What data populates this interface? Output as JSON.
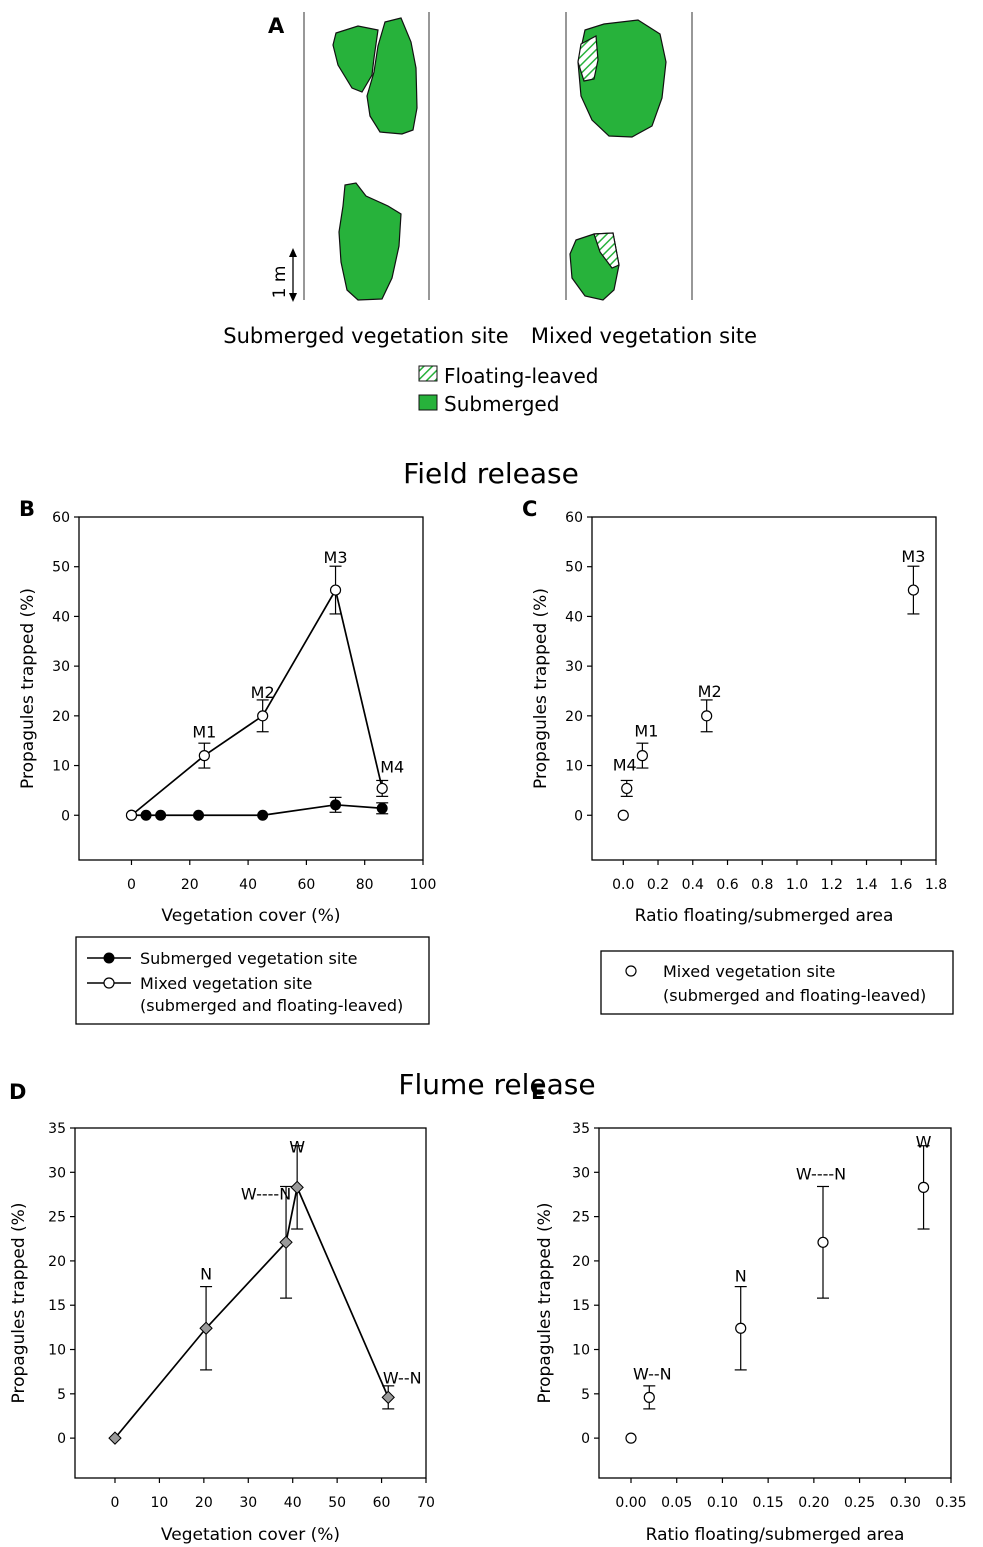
{
  "panels": {
    "A": "A",
    "B": "B",
    "C": "C",
    "D": "D",
    "E": "E"
  },
  "section_titles": {
    "field": "Field release",
    "flume": "Flume release"
  },
  "panel_a": {
    "scale_label": "1 m",
    "site_left": "Submerged vegetation site",
    "site_right": "Mixed vegetation site",
    "legend": [
      {
        "label": "Floating-leaved",
        "pattern": "hatched"
      },
      {
        "label": "Submerged",
        "pattern": "solid"
      }
    ],
    "colors": {
      "submerged": "#27b23b",
      "outline": "#111111",
      "hatch": "#27b23b"
    }
  },
  "legend_b": {
    "submerged": "Submerged vegetation site",
    "mixed_line1": "Mixed vegetation site",
    "mixed_line2": "(submerged and floating-leaved)"
  },
  "legend_c": {
    "mixed_line1": "Mixed vegetation site",
    "mixed_line2": "(submerged and floating-leaved)"
  },
  "chart_data": [
    {
      "panel": "B",
      "type": "line",
      "xlabel": "Vegetation cover (%)",
      "ylabel": "Propagules trapped (%)",
      "xlim": [
        -18,
        100
      ],
      "ylim": [
        -9,
        60
      ],
      "xticks": [
        0,
        20,
        40,
        60,
        80,
        100
      ],
      "yticks": [
        0,
        10,
        20,
        30,
        40,
        50,
        60
      ],
      "series": [
        {
          "name": "Submerged vegetation site",
          "marker": "filled-circle",
          "points": [
            {
              "x": 0,
              "y": 0,
              "err": 0
            },
            {
              "x": 5,
              "y": 0,
              "err": 0
            },
            {
              "x": 10,
              "y": 0,
              "err": 0
            },
            {
              "x": 23,
              "y": 0,
              "err": 0
            },
            {
              "x": 45,
              "y": 0,
              "err": 0
            },
            {
              "x": 70,
              "y": 2.1,
              "err": 1.5
            },
            {
              "x": 86,
              "y": 1.4,
              "err": 1.1
            }
          ]
        },
        {
          "name": "Mixed vegetation site",
          "marker": "open-circle",
          "points": [
            {
              "x": 0,
              "y": 0,
              "err": 0,
              "label": ""
            },
            {
              "x": 25,
              "y": 12,
              "err": 2.5,
              "label": "M1"
            },
            {
              "x": 45,
              "y": 20,
              "err": 3.2,
              "label": "M2"
            },
            {
              "x": 70,
              "y": 45.3,
              "err": 4.8,
              "label": "M3"
            },
            {
              "x": 86,
              "y": 5.4,
              "err": 1.6,
              "label": "M4"
            }
          ]
        }
      ]
    },
    {
      "panel": "C",
      "type": "scatter",
      "xlabel": "Ratio floating/submerged area",
      "ylabel": "Propagules trapped (%)",
      "xlim": [
        -0.18,
        1.8
      ],
      "ylim": [
        -9,
        60
      ],
      "xticks": [
        "0.0",
        "0.2",
        "0.4",
        "0.6",
        "0.8",
        "1.0",
        "1.2",
        "1.4",
        "1.6",
        "1.8"
      ],
      "yticks": [
        0,
        10,
        20,
        30,
        40,
        50,
        60
      ],
      "series": [
        {
          "name": "Mixed vegetation site",
          "marker": "open-circle",
          "points": [
            {
              "x": 0.0,
              "y": 0,
              "err": 0,
              "label": ""
            },
            {
              "x": 0.02,
              "y": 5.4,
              "err": 1.6,
              "label": "M4"
            },
            {
              "x": 0.11,
              "y": 12,
              "err": 2.5,
              "label": "M1"
            },
            {
              "x": 0.48,
              "y": 20,
              "err": 3.2,
              "label": "M2"
            },
            {
              "x": 1.67,
              "y": 45.3,
              "err": 4.8,
              "label": "M3"
            }
          ]
        }
      ]
    },
    {
      "panel": "D",
      "type": "line",
      "xlabel": "Vegetation cover (%)",
      "ylabel": "Propagules trapped (%)",
      "xlim": [
        -9,
        70
      ],
      "ylim": [
        -4.5,
        35
      ],
      "xticks": [
        0,
        10,
        20,
        30,
        40,
        50,
        60,
        70
      ],
      "yticks": [
        0,
        5,
        10,
        15,
        20,
        25,
        30,
        35
      ],
      "series": [
        {
          "marker": "grey-diamond",
          "points": [
            {
              "x": 0,
              "y": 0,
              "err": 0,
              "label": ""
            },
            {
              "x": 20.5,
              "y": 12.4,
              "err": 4.7,
              "label": "N"
            },
            {
              "x": 38.5,
              "y": 22.1,
              "err": 6.3,
              "label": "W----N"
            },
            {
              "x": 41,
              "y": 28.3,
              "err": 4.7,
              "label": "W"
            },
            {
              "x": 61.5,
              "y": 4.6,
              "err": 1.3,
              "label": "W--N"
            }
          ]
        }
      ]
    },
    {
      "panel": "E",
      "type": "scatter",
      "xlabel": "Ratio floating/submerged area",
      "ylabel": "Propagules trapped (%)",
      "xlim": [
        -0.035,
        0.35
      ],
      "ylim": [
        -4.5,
        35
      ],
      "xticks": [
        "0.00",
        "0.05",
        "0.10",
        "0.15",
        "0.20",
        "0.25",
        "0.30",
        "0.35"
      ],
      "yticks": [
        0,
        5,
        10,
        15,
        20,
        25,
        30,
        35
      ],
      "series": [
        {
          "marker": "open-circle",
          "points": [
            {
              "x": 0.0,
              "y": 0,
              "err": 0,
              "label": ""
            },
            {
              "x": 0.02,
              "y": 4.6,
              "err": 1.3,
              "label": "W--N"
            },
            {
              "x": 0.12,
              "y": 12.4,
              "err": 4.7,
              "label": "N"
            },
            {
              "x": 0.21,
              "y": 22.1,
              "err": 6.3,
              "label": "W----N"
            },
            {
              "x": 0.32,
              "y": 28.3,
              "err": 4.7,
              "label": "W"
            }
          ]
        }
      ]
    }
  ]
}
